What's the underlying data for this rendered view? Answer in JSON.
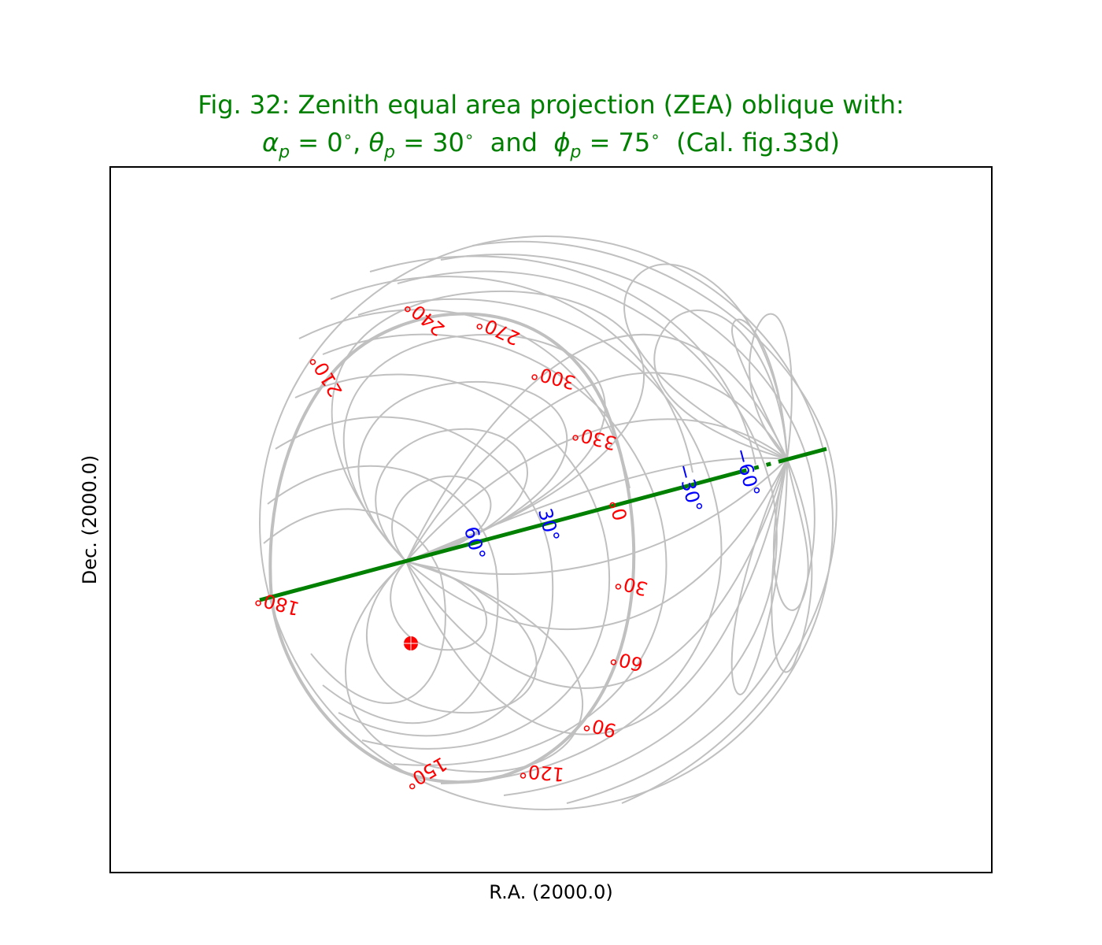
{
  "figure": {
    "title_line1": "Fig. 32: Zenith equal area projection (ZEA) oblique with:",
    "title_line2": {
      "alpha_sym": "α",
      "theta_sym": "θ",
      "phi_sym": "ϕ",
      "sub": "p",
      "alpha_value": " = 0",
      "theta_value": " = 30",
      "phi_value": " = 75",
      "deg": "∘",
      "comma": ", ",
      "and_text": "  and  ",
      "suffix": "  (Cal. fig.33d)"
    },
    "xlabel": "R.A. (2000.0)",
    "ylabel": "Dec. (2000.0)",
    "colors": {
      "title": "#008000",
      "graticule": "#c0c0c0",
      "longitude_labels": "#ff0000",
      "latitude_labels": "#0000ff",
      "highlight_line": "#008000",
      "marker": "#ff0000",
      "frame": "#000000"
    }
  },
  "graticule": {
    "projection": "ZEA",
    "alpha_p_deg": 0,
    "theta_p_deg": 30,
    "phi_p_deg": 75,
    "meridian_step_deg": 15,
    "parallel_step_deg": 15,
    "longitude_labels": [
      "180°",
      "210°",
      "240°",
      "270°",
      "300°",
      "330°",
      "0°",
      "30°",
      "60°",
      "90°",
      "120°",
      "150°"
    ],
    "latitude_labels": [
      "60°",
      "30°",
      "−30°",
      "−60°"
    ]
  }
}
